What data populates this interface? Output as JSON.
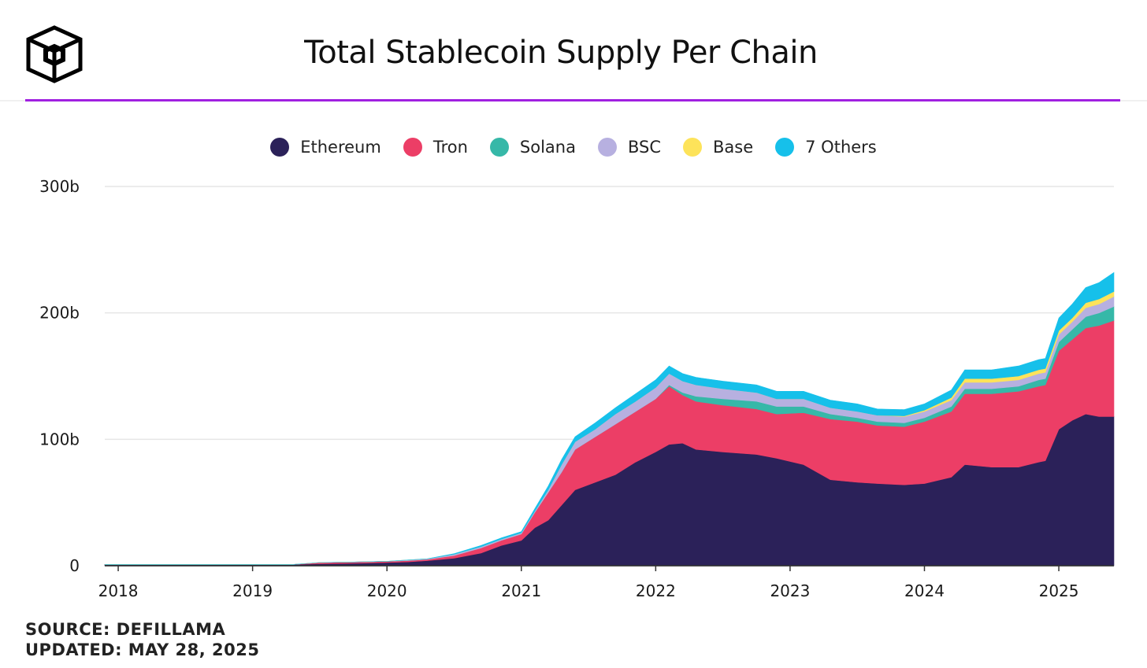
{
  "header": {
    "title": "Total Stablecoin Supply Per Chain",
    "logo_icon": "cube-logo-icon"
  },
  "footer": {
    "source": "SOURCE: DEFILLAMA",
    "updated": "UPDATED: MAY 28, 2025"
  },
  "colors": {
    "accent_line": "#a020e0",
    "Ethereum": "#2b2159",
    "Tron": "#ec3e66",
    "Solana": "#36b8a8",
    "BSC": "#b7b0e0",
    "Base": "#fde35a",
    "7 Others": "#16c0ea"
  },
  "chart_data": {
    "type": "area",
    "stacked": true,
    "title": "Total Stablecoin Supply Per Chain",
    "xlabel": "",
    "ylabel": "",
    "x_ticks": [
      "2018",
      "2019",
      "2020",
      "2021",
      "2022",
      "2023",
      "2024",
      "2025"
    ],
    "y_ticks": [
      "0",
      "100b",
      "200b",
      "300b"
    ],
    "ylim": [
      0,
      300
    ],
    "y_unit": "b",
    "grid": "horizontal",
    "legend_position": "top-center",
    "x": [
      2017.9,
      2018.5,
      2019.0,
      2019.3,
      2019.5,
      2019.8,
      2020.0,
      2020.15,
      2020.3,
      2020.5,
      2020.7,
      2020.85,
      2021.0,
      2021.1,
      2021.2,
      2021.3,
      2021.4,
      2021.55,
      2021.7,
      2021.85,
      2022.0,
      2022.1,
      2022.2,
      2022.3,
      2022.5,
      2022.75,
      2022.9,
      2023.1,
      2023.3,
      2023.5,
      2023.65,
      2023.85,
      2024.0,
      2024.2,
      2024.3,
      2024.5,
      2024.7,
      2024.85,
      2024.9,
      2025.0,
      2025.1,
      2025.2,
      2025.3,
      2025.41
    ],
    "series": [
      {
        "name": "Ethereum",
        "values": [
          1,
          1,
          1,
          1,
          1.5,
          2,
          2.5,
          3,
          4,
          6,
          10,
          16,
          20,
          30,
          36,
          48,
          60,
          66,
          72,
          82,
          90,
          96,
          97,
          92,
          90,
          88,
          85,
          80,
          68,
          66,
          65,
          64,
          65,
          70,
          80,
          78,
          78,
          82,
          83,
          108,
          115,
          120,
          118,
          118
        ]
      },
      {
        "name": "Tron",
        "values": [
          0,
          0,
          0,
          0,
          1,
          1,
          1,
          1,
          1,
          2,
          4,
          4,
          5,
          12,
          22,
          26,
          32,
          36,
          40,
          40,
          42,
          46,
          38,
          38,
          37,
          36,
          35,
          41,
          48,
          48,
          46,
          46,
          49,
          52,
          56,
          58,
          60,
          60,
          60,
          62,
          64,
          68,
          72,
          76
        ]
      },
      {
        "name": "Solana",
        "values": [
          0,
          0,
          0,
          0,
          0,
          0,
          0,
          0,
          0,
          0,
          0,
          0,
          0,
          0,
          0,
          0,
          0,
          0,
          0,
          0,
          0,
          1,
          2,
          4,
          5,
          6,
          6,
          5,
          4,
          3,
          3,
          3,
          3,
          4,
          4,
          4,
          4,
          5,
          5,
          7,
          8,
          9,
          10,
          11
        ]
      },
      {
        "name": "BSC",
        "values": [
          0,
          0,
          0,
          0,
          0,
          0,
          0,
          0.5,
          0.5,
          1,
          1,
          1,
          1,
          1,
          2,
          6,
          6,
          6,
          8,
          8,
          9,
          9,
          9,
          9,
          8,
          7,
          6,
          6,
          5,
          5,
          5,
          5,
          5,
          5,
          5,
          5,
          5,
          5,
          5,
          6,
          6,
          7,
          7,
          8
        ]
      },
      {
        "name": "Base",
        "values": [
          0,
          0,
          0,
          0,
          0,
          0,
          0,
          0,
          0,
          0,
          0,
          0,
          0,
          0,
          0,
          0,
          0,
          0,
          0,
          0,
          0,
          0,
          0,
          0,
          0,
          0,
          0,
          0,
          0,
          0,
          0,
          0.5,
          1,
          2,
          3,
          3,
          3,
          3,
          3,
          3,
          3,
          4,
          4,
          4
        ]
      },
      {
        "name": "7 Others",
        "values": [
          0,
          0,
          0,
          0,
          0,
          0,
          0,
          0,
          0,
          0.5,
          1,
          1,
          1,
          2,
          3,
          4,
          4,
          5,
          5,
          6,
          6,
          6,
          6,
          6,
          6,
          6,
          6,
          6,
          6,
          6,
          5,
          5,
          5,
          6,
          7,
          7,
          8,
          8,
          8,
          10,
          11,
          12,
          13,
          15
        ]
      }
    ]
  }
}
